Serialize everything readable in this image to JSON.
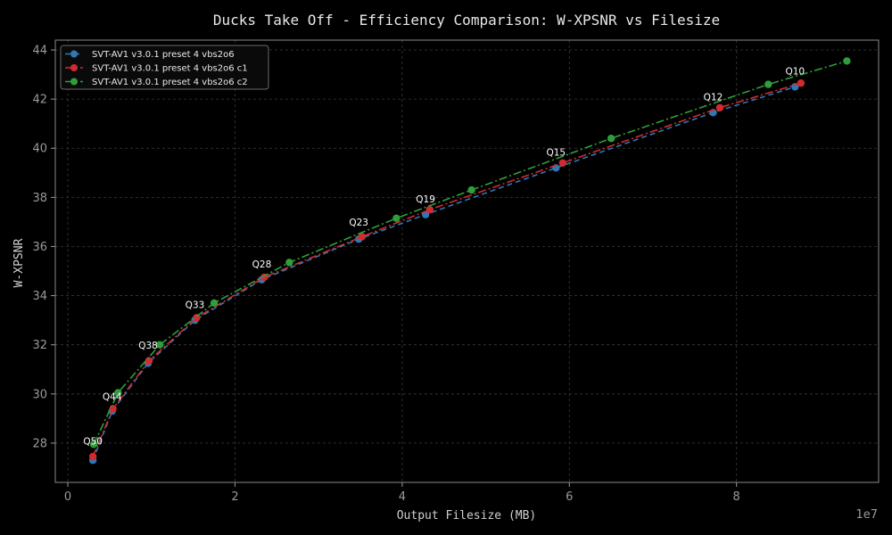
{
  "chart_data": {
    "type": "line",
    "title": "Ducks Take Off - Efficiency Comparison: W-XPSNR vs Filesize",
    "xlabel": "Output Filesize (MB)",
    "ylabel": "W-XPSNR",
    "x_exponent_label": "1e7",
    "xlim": [
      -0.15,
      9.7
    ],
    "ylim": [
      26.4,
      44.4
    ],
    "x_ticks": [
      0,
      2,
      4,
      6,
      8
    ],
    "x_tick_labels": [
      "0",
      "2",
      "4",
      "6",
      "8"
    ],
    "y_ticks": [
      28,
      30,
      32,
      34,
      36,
      38,
      40,
      42,
      44
    ],
    "y_tick_labels": [
      "28",
      "30",
      "32",
      "34",
      "36",
      "38",
      "40",
      "42",
      "44"
    ],
    "grid": true,
    "legend_position": "top-left",
    "series": [
      {
        "name": "SVT-AV1 v3.0.1 preset 4 vbs2o6",
        "color": "#2f78b6",
        "dash": "6,4",
        "x": [
          0.3,
          0.53,
          0.96,
          1.52,
          2.32,
          3.48,
          4.28,
          5.84,
          7.72,
          8.7
        ],
        "y": [
          27.3,
          29.3,
          31.25,
          33.0,
          34.65,
          36.3,
          37.3,
          39.2,
          41.45,
          42.5
        ]
      },
      {
        "name": "SVT-AV1 v3.0.1 preset 4 vbs2o6 c1",
        "color": "#d42a2f",
        "dash": "9,3,2,3",
        "x": [
          0.3,
          0.54,
          0.97,
          1.54,
          2.35,
          3.52,
          4.33,
          5.92,
          7.8,
          8.77
        ],
        "y": [
          27.45,
          29.4,
          31.35,
          33.1,
          34.75,
          36.4,
          37.5,
          39.4,
          41.65,
          42.65
        ]
      },
      {
        "name": "SVT-AV1 v3.0.1 preset 4 vbs2o6 c2",
        "color": "#2e9e3a",
        "dash": "9,3,2,3",
        "x": [
          0.31,
          0.6,
          1.1,
          1.75,
          2.65,
          3.93,
          4.83,
          6.5,
          8.38,
          9.32
        ],
        "y": [
          27.95,
          30.05,
          32.0,
          33.7,
          35.35,
          37.15,
          38.3,
          40.4,
          42.6,
          43.55
        ]
      }
    ],
    "annotations": [
      {
        "text": "Q50",
        "x": 0.3,
        "y": 27.95
      },
      {
        "text": "Q44",
        "x": 0.53,
        "y": 29.75
      },
      {
        "text": "Q38",
        "x": 0.96,
        "y": 31.85
      },
      {
        "text": "Q33",
        "x": 1.52,
        "y": 33.5
      },
      {
        "text": "Q28",
        "x": 2.32,
        "y": 35.15
      },
      {
        "text": "Q23",
        "x": 3.48,
        "y": 36.85
      },
      {
        "text": "Q19",
        "x": 4.28,
        "y": 37.8
      },
      {
        "text": "Q15",
        "x": 5.84,
        "y": 39.7
      },
      {
        "text": "Q12",
        "x": 7.72,
        "y": 41.95
      },
      {
        "text": "Q10",
        "x": 8.7,
        "y": 43.0
      }
    ]
  }
}
